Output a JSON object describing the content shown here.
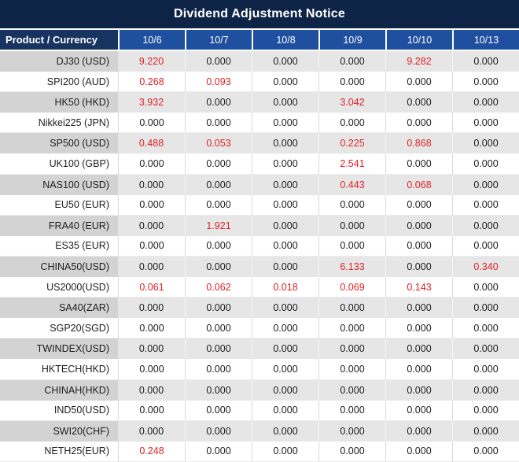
{
  "title": "Dividend Adjustment Notice",
  "colors": {
    "title_bg": "#0e2446",
    "product_header_bg": "#17335f",
    "date_header_bg": "#1f4f9f",
    "stripe_product_bg": "#d3d3d3",
    "stripe_value_bg": "#e6e6e6",
    "highlight_red": "#e02126",
    "text_black": "#1d1d1d"
  },
  "table": {
    "product_header": "Product / Currency",
    "dates": [
      "10/6",
      "10/7",
      "10/8",
      "10/9",
      "10/10",
      "10/13"
    ],
    "rows": [
      {
        "product": "DJ30 (USD)",
        "values": [
          "9.220",
          "0.000",
          "0.000",
          "0.000",
          "9.282",
          "0.000"
        ],
        "red": [
          0,
          4
        ]
      },
      {
        "product": "SPI200 (AUD)",
        "values": [
          "0.268",
          "0.093",
          "0.000",
          "0.000",
          "0.000",
          "0.000"
        ],
        "red": [
          0,
          1
        ]
      },
      {
        "product": "HK50 (HKD)",
        "values": [
          "3.932",
          "0.000",
          "0.000",
          "3.042",
          "0.000",
          "0.000"
        ],
        "red": [
          0,
          3
        ]
      },
      {
        "product": "Nikkei225 (JPN)",
        "values": [
          "0.000",
          "0.000",
          "0.000",
          "0.000",
          "0.000",
          "0.000"
        ],
        "red": []
      },
      {
        "product": "SP500 (USD)",
        "values": [
          "0.488",
          "0.053",
          "0.000",
          "0.225",
          "0.868",
          "0.000"
        ],
        "red": [
          0,
          1,
          3,
          4
        ]
      },
      {
        "product": "UK100 (GBP)",
        "values": [
          "0.000",
          "0.000",
          "0.000",
          "2.541",
          "0.000",
          "0.000"
        ],
        "red": [
          3
        ]
      },
      {
        "product": "NAS100 (USD)",
        "values": [
          "0.000",
          "0.000",
          "0.000",
          "0.443",
          "0.068",
          "0.000"
        ],
        "red": [
          3,
          4
        ]
      },
      {
        "product": "EU50 (EUR)",
        "values": [
          "0.000",
          "0.000",
          "0.000",
          "0.000",
          "0.000",
          "0.000"
        ],
        "red": []
      },
      {
        "product": "FRA40 (EUR)",
        "values": [
          "0.000",
          "1.921",
          "0.000",
          "0.000",
          "0.000",
          "0.000"
        ],
        "red": [
          1
        ]
      },
      {
        "product": "ES35 (EUR)",
        "values": [
          "0.000",
          "0.000",
          "0.000",
          "0.000",
          "0.000",
          "0.000"
        ],
        "red": []
      },
      {
        "product": "CHINA50(USD)",
        "values": [
          "0.000",
          "0.000",
          "0.000",
          "6.133",
          "0.000",
          "0.340"
        ],
        "red": [
          3,
          5
        ]
      },
      {
        "product": "US2000(USD)",
        "values": [
          "0.061",
          "0.062",
          "0.018",
          "0.069",
          "0.143",
          "0.000"
        ],
        "red": [
          0,
          1,
          2,
          3,
          4
        ]
      },
      {
        "product": "SA40(ZAR)",
        "values": [
          "0.000",
          "0.000",
          "0.000",
          "0.000",
          "0.000",
          "0.000"
        ],
        "red": []
      },
      {
        "product": "SGP20(SGD)",
        "values": [
          "0.000",
          "0.000",
          "0.000",
          "0.000",
          "0.000",
          "0.000"
        ],
        "red": []
      },
      {
        "product": "TWINDEX(USD)",
        "values": [
          "0.000",
          "0.000",
          "0.000",
          "0.000",
          "0.000",
          "0.000"
        ],
        "red": []
      },
      {
        "product": "HKTECH(HKD)",
        "values": [
          "0.000",
          "0.000",
          "0.000",
          "0.000",
          "0.000",
          "0.000"
        ],
        "red": []
      },
      {
        "product": "CHINAH(HKD)",
        "values": [
          "0.000",
          "0.000",
          "0.000",
          "0.000",
          "0.000",
          "0.000"
        ],
        "red": []
      },
      {
        "product": "IND50(USD)",
        "values": [
          "0.000",
          "0.000",
          "0.000",
          "0.000",
          "0.000",
          "0.000"
        ],
        "red": []
      },
      {
        "product": "SWI20(CHF)",
        "values": [
          "0.000",
          "0.000",
          "0.000",
          "0.000",
          "0.000",
          "0.000"
        ],
        "red": []
      },
      {
        "product": "NETH25(EUR)",
        "values": [
          "0.248",
          "0.000",
          "0.000",
          "0.000",
          "0.000",
          "0.000"
        ],
        "red": [
          0
        ]
      }
    ]
  }
}
